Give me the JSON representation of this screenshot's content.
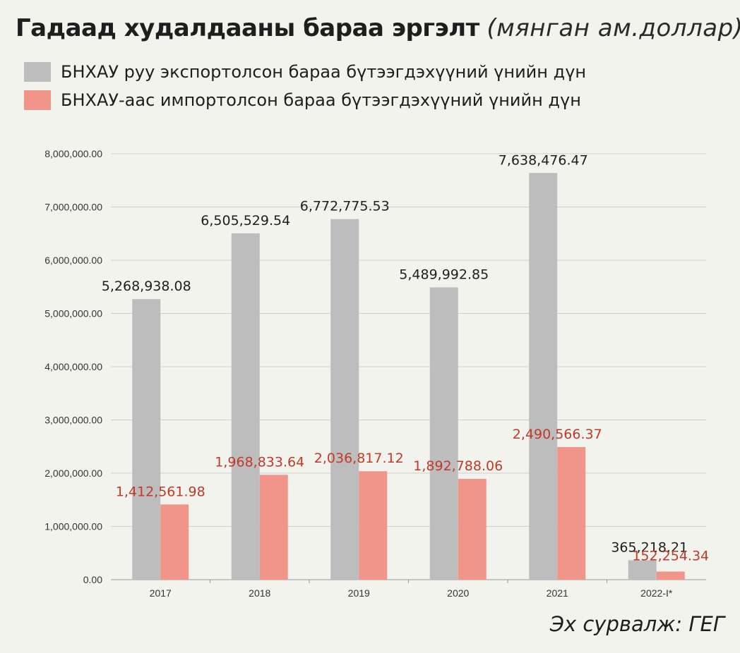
{
  "title": {
    "main": "Гадаад худалдааны бараа эргэлт",
    "unit": "(мянган ам.доллар)"
  },
  "legend": [
    {
      "label": "БНХАУ руу экспортолсон бараа бүтээгдэхүүний үнийн дүн",
      "color": "#bdbdbd"
    },
    {
      "label": "БНХАУ-аас импортолсон бараа бүтээгдэхүүний үнийн дүн",
      "color": "#f1948a"
    }
  ],
  "source": "Эх сурвалж: ГЕГ",
  "chart_data": {
    "type": "bar",
    "categories": [
      "2017",
      "2018",
      "2019",
      "2020",
      "2021",
      "2022-I*"
    ],
    "series": [
      {
        "name": "БНХАУ руу экспортолсон бараа бүтээгдэхүүний үнийн дүн",
        "color": "#bdbdbd",
        "label_color": "#1e1e1e",
        "values": [
          5268938.08,
          6505529.54,
          6772775.53,
          5489992.85,
          7638476.47,
          365218.21
        ],
        "value_labels": [
          "5,268,938.08",
          "6,505,529.54",
          "6,772,775.53",
          "5,489,992.85",
          "7,638,476.47",
          "365,218.21"
        ]
      },
      {
        "name": "БНХАУ-аас импортолсон бараа бүтээгдэхүүний үнийн дүн",
        "color": "#f1948a",
        "label_color": "#c0392b",
        "values": [
          1412561.98,
          1968833.64,
          2036817.12,
          1892788.06,
          2490566.37,
          152254.34
        ],
        "value_labels": [
          "1,412,561.98",
          "1,968,833.64",
          "2,036,817.12",
          "1,892,788.06",
          "2,490,566.37",
          "152,254.34"
        ]
      }
    ],
    "y_ticks": [
      "0.00",
      "1,000,000.00",
      "2,000,000.00",
      "3,000,000.00",
      "4,000,000.00",
      "5,000,000.00",
      "6,000,000.00",
      "7,000,000.00",
      "8,000,000.00"
    ],
    "ylim": [
      0,
      8000000
    ],
    "grid": true,
    "legend_position": "top-left"
  }
}
